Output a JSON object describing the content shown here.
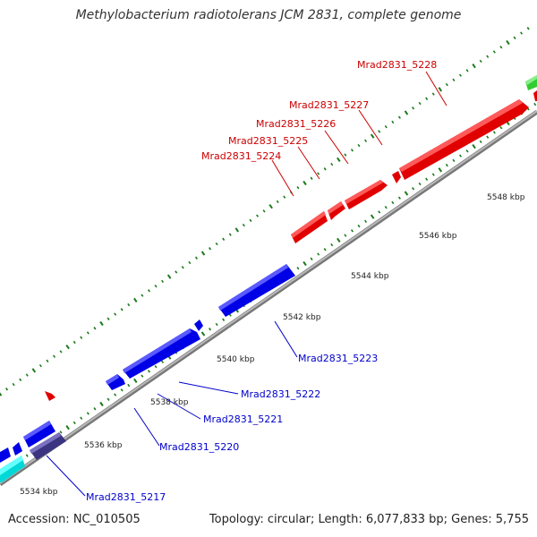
{
  "header": {
    "title": "Methylobacterium radiotolerans JCM 2831, complete genome"
  },
  "footer": {
    "accession": "Accession: NC_010505",
    "summary": "Topology: circular; Length: 6,077,833 bp; Genes: 5,755"
  },
  "colors": {
    "forward_cds": "#ff0000",
    "reverse_cds": "#0000ff",
    "reverse_cds_dark": "#4a3f8f",
    "reverse_other": "#00e5e5",
    "forward_other": "#33cc33",
    "backbone": "#888888",
    "tick": "#1a7a1a"
  },
  "scale": {
    "unit": "kbp",
    "ticks": [
      {
        "kbp": 5534,
        "label": "5534 kbp"
      },
      {
        "kbp": 5536,
        "label": "5536 kbp"
      },
      {
        "kbp": 5538,
        "label": "5538 kbp"
      },
      {
        "kbp": 5540,
        "label": "5540 kbp"
      },
      {
        "kbp": 5542,
        "label": "5542 kbp"
      },
      {
        "kbp": 5544,
        "label": "5544 kbp"
      },
      {
        "kbp": 5546,
        "label": "5546 kbp"
      },
      {
        "kbp": 5548,
        "label": "5548 kbp"
      }
    ]
  },
  "genes": {
    "forward": [
      {
        "name": "Mrad2831_5224"
      },
      {
        "name": "Mrad2831_5225"
      },
      {
        "name": "Mrad2831_5226"
      },
      {
        "name": "Mrad2831_5227"
      },
      {
        "name": "Mrad2831_5228"
      }
    ],
    "reverse": [
      {
        "name": "Mrad2831_5217"
      },
      {
        "name": "Mrad2831_5220"
      },
      {
        "name": "Mrad2831_5221"
      },
      {
        "name": "Mrad2831_5222"
      },
      {
        "name": "Mrad2831_5223"
      }
    ]
  }
}
